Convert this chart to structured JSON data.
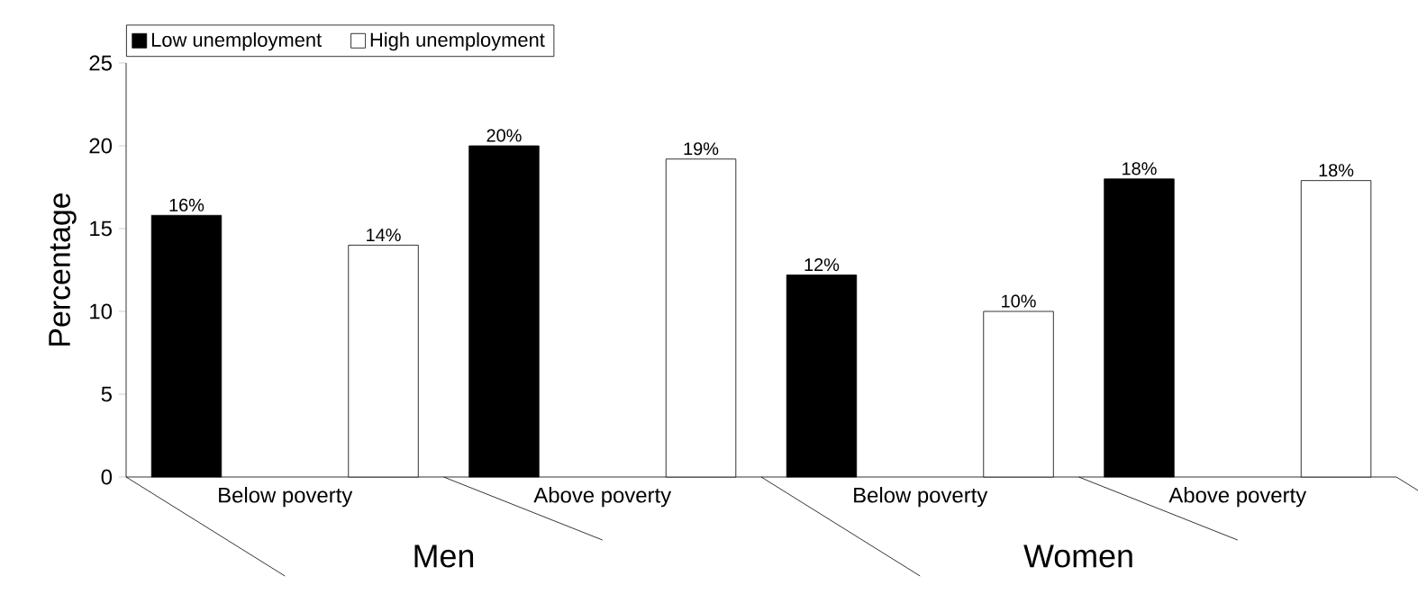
{
  "chart_data": {
    "type": "bar",
    "ylabel": "Percentage",
    "categories": [
      "Below poverty",
      "Above poverty",
      "Below poverty",
      "Above poverty"
    ],
    "series": [
      {
        "name": "Low unemployment",
        "color": "#000000",
        "values": [
          15.8,
          20.0,
          12.2,
          18.0
        ],
        "value_labels": [
          "16%",
          "20%",
          "12%",
          "18%"
        ]
      },
      {
        "name": "High unemployment",
        "color": "#ffffff",
        "values": [
          14.0,
          19.2,
          10.0,
          17.9
        ],
        "value_labels": [
          "14%",
          "19%",
          "10%",
          "18%"
        ]
      }
    ],
    "ylim": [
      0,
      25
    ],
    "yticks": [
      0,
      5,
      10,
      15,
      20,
      25
    ],
    "legend": "top left",
    "annotations": [
      "Men",
      "Women"
    ]
  }
}
